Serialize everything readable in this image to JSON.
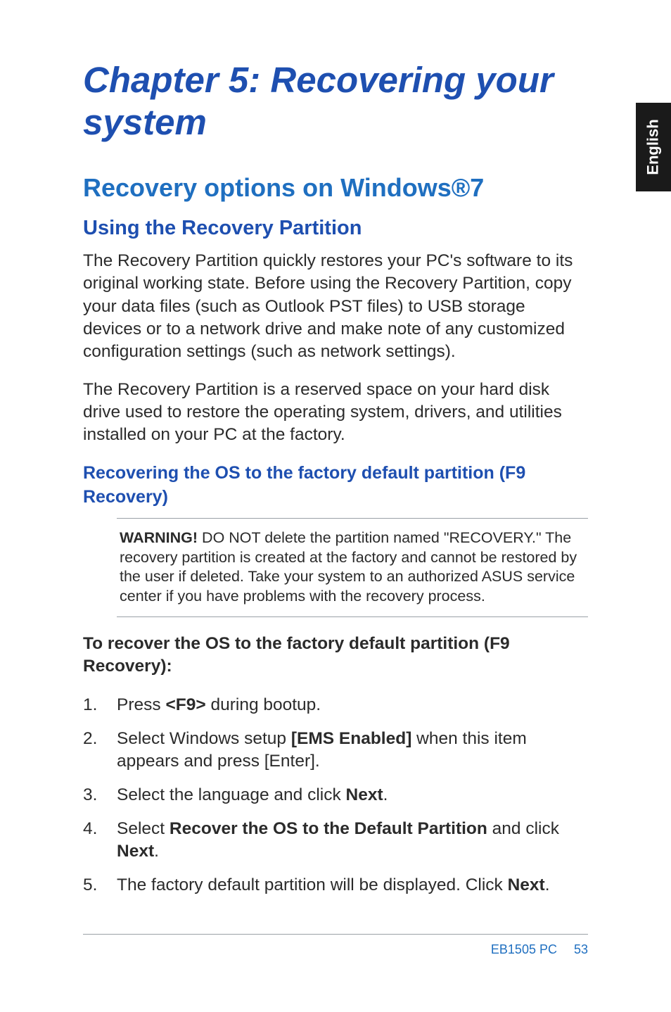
{
  "sideTab": "English",
  "chapterTitle": "Chapter 5: Recovering your system",
  "h1": "Recovery options on Windows®7",
  "h2": "Using the Recovery Partition",
  "para1": "The Recovery Partition quickly restores your PC's software to its original working state. Before using the Recovery Partition, copy your data files (such as Outlook PST files) to USB storage devices or to a network drive and make note of any customized configuration settings (such as network settings).",
  "para2": "The Recovery Partition is a reserved space on your hard disk drive used to restore the operating system, drivers, and utilities installed on your PC at the factory.",
  "h3": "Recovering the OS to the factory default partition  (F9 Recovery)",
  "warning": {
    "label": "WARNING!",
    "text": "  DO NOT delete the partition named \"RECOVERY.\" The recovery partition is created at the factory and cannot be restored by the user if deleted. Take your system to an authorized ASUS service center if you have problems with the recovery process."
  },
  "lead": "To recover the OS to the factory default partition (F9 Recovery):",
  "steps": {
    "s1a": "Press ",
    "s1b": "<F9>",
    "s1c": " during bootup.",
    "s2a": "Select Windows setup ",
    "s2b": "[EMS Enabled]",
    "s2c": " when this item appears and press [Enter].",
    "s3a": "Select the language and click ",
    "s3b": "Next",
    "s3c": ".",
    "s4a": "Select ",
    "s4b": "Recover the OS to the Default Partition",
    "s4c": " and click ",
    "s4d": "Next",
    "s4e": ".",
    "s5a": "The factory default partition will be displayed. Click ",
    "s5b": "Next",
    "s5c": "."
  },
  "footer": {
    "label": "EB1505 PC",
    "page": "53"
  },
  "colors": {
    "chapterTitle": "#1e4fb0",
    "h1": "#1f6fc0",
    "h2": "#1e4fb0",
    "h3": "#1e4fb0",
    "bodyText": "#2b2b2b",
    "footer": "#1f6fc0",
    "sideTabBg": "#1a1a1a",
    "sideTabText": "#ffffff",
    "ruleColor": "#9aa0a6"
  },
  "typography": {
    "chapterTitle_pt": 51,
    "h1_pt": 36,
    "h2_pt": 29,
    "h3_pt": 25,
    "body_pt": 24.5,
    "warning_pt": 21.5,
    "footer_pt": 18
  }
}
